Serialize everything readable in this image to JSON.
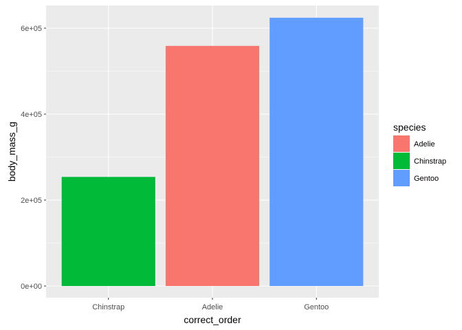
{
  "chart_data": {
    "type": "bar",
    "categories": [
      "Chinstrap",
      "Adelie",
      "Gentoo"
    ],
    "values": [
      253850,
      558800,
      624350
    ],
    "fill_by": [
      "Chinstrap",
      "Adelie",
      "Gentoo"
    ],
    "xlabel": "correct_order",
    "ylabel": "body_mass_g",
    "ylim": [
      0,
      650000
    ],
    "yticks": [
      0,
      200000,
      400000,
      600000
    ],
    "ytick_labels": [
      "0e+00",
      "2e+05",
      "4e+05",
      "6e+05"
    ],
    "grid": true,
    "legend": {
      "title": "species",
      "placement": "right",
      "entries": [
        {
          "name": "Adelie",
          "color": "#F8766D"
        },
        {
          "name": "Chinstrap",
          "color": "#00BA38"
        },
        {
          "name": "Gentoo",
          "color": "#619CFF"
        }
      ]
    },
    "colors": {
      "panel_background": "#EBEBEB",
      "grid": "#FFFFFF",
      "tick_text": "#4D4D4D",
      "tick_mark": "#333333"
    }
  }
}
